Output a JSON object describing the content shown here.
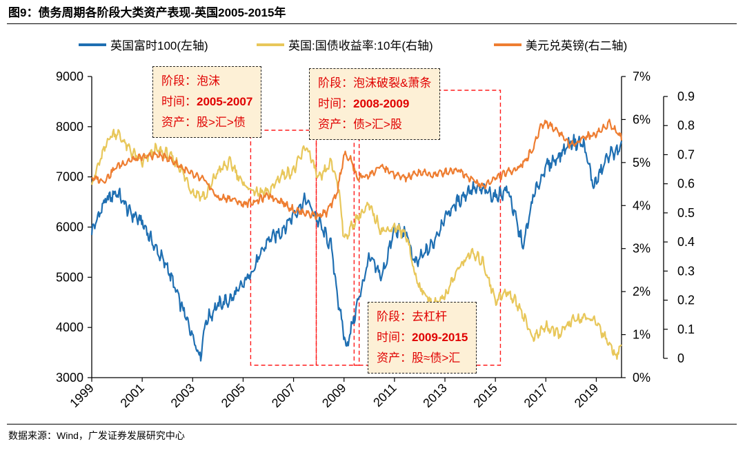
{
  "title": "图9：债务周期各阶段大类资产表现-英国2005-2015年",
  "source": "数据来源：Wind，广发证券发展研究中心",
  "legend": [
    {
      "label": "英国富时100(左轴)",
      "color": "#1f6fb2"
    },
    {
      "label": "英国:国债收益率:10年(右轴)",
      "color": "#e8c75a"
    },
    {
      "label": "美元兑英镑(右二轴)",
      "color": "#ee7d31"
    }
  ],
  "boxes": [
    {
      "stage_label": "阶段：",
      "stage": "泡沫",
      "time_label": "时间：",
      "time": "2005-2007",
      "asset_label": "资产：",
      "asset": "股>汇>债"
    },
    {
      "stage_label": "阶段：",
      "stage": "泡沫破裂&萧条",
      "time_label": "时间：",
      "time": "2008-2009",
      "asset_label": "资产：",
      "asset": "债>汇>股"
    },
    {
      "stage_label": "阶段：",
      "stage": "去杠杆",
      "time_label": "时间：",
      "time": "2009-2015",
      "asset_label": "资产：",
      "asset": "股≈债>汇"
    }
  ],
  "chart_data": {
    "type": "line",
    "title": "债务周期各阶段大类资产表现-英国2005-2015年",
    "x_ticks": [
      "1999",
      "2001",
      "2003",
      "2005",
      "2007",
      "2009",
      "2011",
      "2013",
      "2015",
      "2017",
      "2019"
    ],
    "xlim": [
      1999,
      2020
    ],
    "left_axis": {
      "ticks": [
        "3000",
        "4000",
        "5000",
        "6000",
        "7000",
        "8000",
        "9000"
      ],
      "ylim": [
        3000,
        9000
      ]
    },
    "right_axis": {
      "ticks": [
        "0%",
        "1%",
        "2%",
        "3%",
        "4%",
        "5%",
        "6%",
        "7%"
      ],
      "ylim": [
        0,
        7
      ]
    },
    "right2_axis": {
      "ticks": [
        "0",
        "0.1",
        "0.2",
        "0.3",
        "0.4",
        "0.5",
        "0.6",
        "0.7",
        "0.8",
        "0.9"
      ],
      "ylim": [
        0,
        0.9
      ]
    },
    "regions": [
      {
        "name": "泡沫",
        "x_start": 2005.3,
        "x_end": 2007.9
      },
      {
        "name": "泡沫破裂&萧条",
        "x_start": 2007.9,
        "x_end": 2009.6
      },
      {
        "name": "去杠杆",
        "x_start": 2009.4,
        "x_end": 2015.2
      }
    ],
    "series": [
      {
        "name": "英国富时100",
        "axis": "left",
        "color": "#1f6fb2",
        "x": [
          1999.0,
          1999.5,
          2000.0,
          2000.5,
          2001.0,
          2001.5,
          2002.0,
          2002.5,
          2003.0,
          2003.3,
          2003.5,
          2004.0,
          2004.5,
          2005.0,
          2005.5,
          2006.0,
          2006.5,
          2007.0,
          2007.5,
          2008.0,
          2008.5,
          2008.8,
          2009.1,
          2009.5,
          2010.0,
          2010.5,
          2011.0,
          2011.5,
          2011.8,
          2012.5,
          2013.0,
          2013.5,
          2014.0,
          2014.5,
          2015.0,
          2015.5,
          2016.1,
          2016.5,
          2017.0,
          2017.5,
          2018.0,
          2018.5,
          2018.9,
          2019.5,
          2020.0
        ],
        "values": [
          5900,
          6500,
          6700,
          6300,
          6100,
          5600,
          5200,
          4500,
          3850,
          3400,
          4100,
          4450,
          4550,
          4850,
          5250,
          5750,
          5900,
          6250,
          6550,
          6100,
          5600,
          4400,
          3600,
          4400,
          5400,
          5000,
          5950,
          5850,
          5250,
          5650,
          6200,
          6500,
          6750,
          6750,
          6600,
          6750,
          5600,
          6600,
          7200,
          7400,
          7700,
          7650,
          6800,
          7450,
          7550
        ]
      },
      {
        "name": "英国:国债收益率:10年",
        "axis": "right",
        "color": "#e8c75a",
        "x": [
          1999.0,
          1999.3,
          1999.7,
          2000.0,
          2000.5,
          2001.0,
          2001.5,
          2002.0,
          2002.5,
          2003.0,
          2003.5,
          2004.0,
          2004.5,
          2005.0,
          2005.5,
          2006.0,
          2006.5,
          2007.0,
          2007.5,
          2008.0,
          2008.5,
          2008.8,
          2009.0,
          2009.5,
          2010.0,
          2010.5,
          2011.0,
          2011.5,
          2011.8,
          2012.0,
          2012.5,
          2013.0,
          2013.5,
          2014.0,
          2014.5,
          2015.0,
          2015.5,
          2016.0,
          2016.5,
          2017.0,
          2017.5,
          2018.0,
          2018.5,
          2019.0,
          2019.5,
          2019.8,
          2020.0
        ],
        "values": [
          4.5,
          5.0,
          5.6,
          5.7,
          5.3,
          5.0,
          5.3,
          5.2,
          4.9,
          4.3,
          4.2,
          4.8,
          5.0,
          4.5,
          4.3,
          4.3,
          4.7,
          4.8,
          5.4,
          4.6,
          5.0,
          4.4,
          3.2,
          3.7,
          4.0,
          3.4,
          3.5,
          3.3,
          2.4,
          2.1,
          1.7,
          1.9,
          2.5,
          2.9,
          2.7,
          1.8,
          2.0,
          1.6,
          0.9,
          1.2,
          1.0,
          1.3,
          1.4,
          1.3,
          0.8,
          0.5,
          0.8
        ]
      },
      {
        "name": "美元兑英镑",
        "axis": "right2",
        "color": "#ee7d31",
        "x": [
          1999.0,
          1999.5,
          2000.0,
          2000.5,
          2001.0,
          2001.5,
          2002.0,
          2002.5,
          2003.0,
          2003.5,
          2004.0,
          2004.5,
          2005.0,
          2005.5,
          2006.0,
          2006.5,
          2007.0,
          2007.5,
          2007.9,
          2008.3,
          2008.7,
          2009.0,
          2009.3,
          2009.5,
          2010.0,
          2010.5,
          2011.0,
          2011.5,
          2012.0,
          2012.5,
          2013.0,
          2013.5,
          2014.0,
          2014.5,
          2015.0,
          2015.5,
          2016.0,
          2016.5,
          2016.8,
          2017.0,
          2017.5,
          2018.0,
          2018.5,
          2019.0,
          2019.5,
          2019.8,
          2020.0
        ],
        "values": [
          0.62,
          0.61,
          0.66,
          0.68,
          0.69,
          0.7,
          0.69,
          0.66,
          0.63,
          0.61,
          0.55,
          0.55,
          0.53,
          0.54,
          0.56,
          0.54,
          0.51,
          0.5,
          0.49,
          0.5,
          0.56,
          0.7,
          0.68,
          0.62,
          0.63,
          0.66,
          0.63,
          0.62,
          0.64,
          0.63,
          0.64,
          0.65,
          0.62,
          0.59,
          0.62,
          0.64,
          0.66,
          0.72,
          0.8,
          0.81,
          0.78,
          0.73,
          0.76,
          0.77,
          0.81,
          0.78,
          0.76
        ]
      }
    ]
  }
}
